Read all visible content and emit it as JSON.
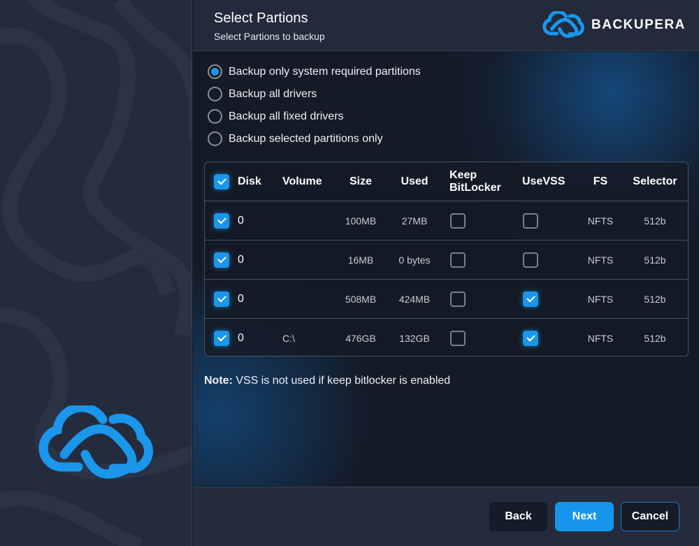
{
  "header": {
    "title": "Select Partions",
    "subtitle": "Select Partions to backup",
    "brand": "BACKUPERA"
  },
  "options": [
    {
      "label": "Backup only system required partitions",
      "selected": true
    },
    {
      "label": "Backup all drivers",
      "selected": false
    },
    {
      "label": "Backup all fixed drivers",
      "selected": false
    },
    {
      "label": "Backup selected partitions only",
      "selected": false
    }
  ],
  "table": {
    "all_checked": true,
    "columns": {
      "disk": "Disk",
      "volume": "Volume",
      "size": "Size",
      "used": "Used",
      "keep_line1": "Keep",
      "keep_line2": "BitLocker",
      "vss": "UseVSS",
      "fs": "FS",
      "selector": "Selector"
    },
    "rows": [
      {
        "checked": true,
        "disk": "0",
        "volume": "",
        "size": "100MB",
        "used": "27MB",
        "keep": false,
        "vss": false,
        "fs": "NFTS",
        "selector": "512b"
      },
      {
        "checked": true,
        "disk": "0",
        "volume": "",
        "size": "16MB",
        "used": "0 bytes",
        "keep": false,
        "vss": false,
        "fs": "NFTS",
        "selector": "512b"
      },
      {
        "checked": true,
        "disk": "0",
        "volume": "",
        "size": "508MB",
        "used": "424MB",
        "keep": false,
        "vss": true,
        "fs": "NFTS",
        "selector": "512b"
      },
      {
        "checked": true,
        "disk": "0",
        "volume": "C:\\",
        "size": "476GB",
        "used": "132GB",
        "keep": false,
        "vss": true,
        "fs": "NFTS",
        "selector": "512b"
      }
    ]
  },
  "note": {
    "label": "Note:",
    "text": " VSS is not used if keep bitlocker is enabled"
  },
  "footer": {
    "back": "Back",
    "next": "Next",
    "cancel": "Cancel"
  },
  "colors": {
    "accent": "#1696ea",
    "panel": "#242b3d",
    "content": "#141a26"
  }
}
